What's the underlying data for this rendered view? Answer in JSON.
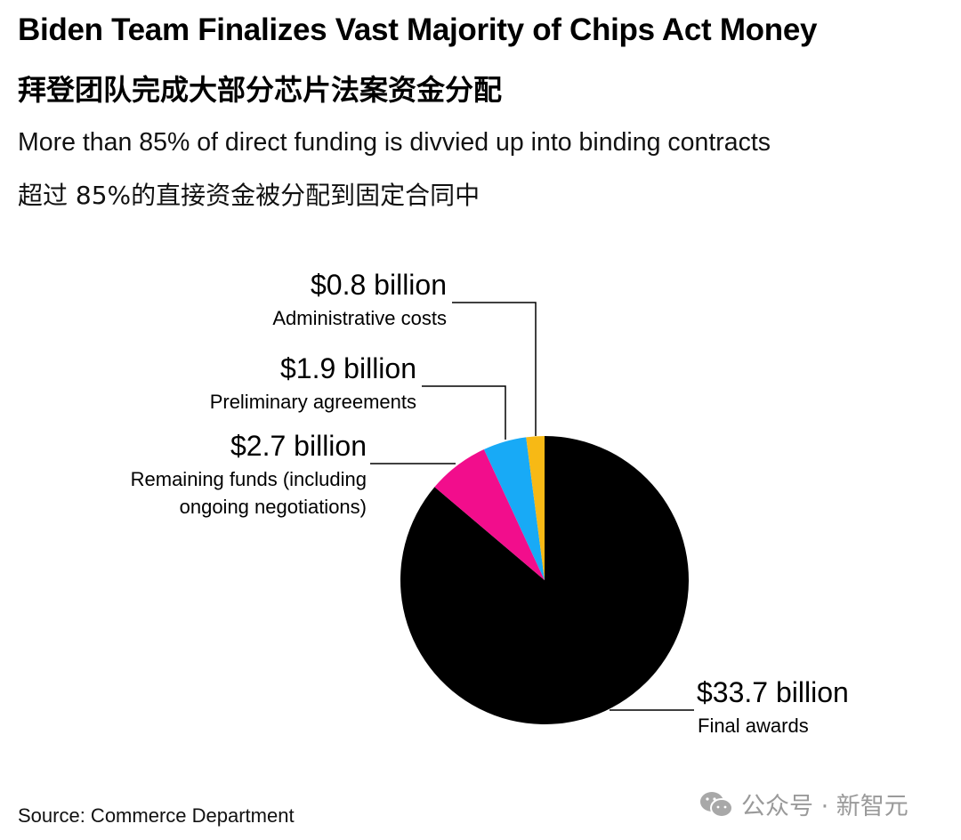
{
  "chart_data": {
    "type": "pie",
    "title": "Biden Team Finalizes Vast Majority of Chips Act Money",
    "title_cn": "拜登团队完成大部分芯片法案资金分配",
    "subtitle": "More than 85% of direct funding is divvied up into binding contracts",
    "subtitle_cn": "超过 85%的直接资金被分配到固定合同中",
    "unit": "billion USD",
    "slices": [
      {
        "name": "Final awards",
        "value": 33.7,
        "label": "$33.7 billion",
        "color": "#000000"
      },
      {
        "name": "Remaining funds (including ongoing negotiations)",
        "line1": "Remaining funds (including",
        "line2": "ongoing negotiations)",
        "value": 2.7,
        "label": "$2.7 billion",
        "color": "#f20d8c"
      },
      {
        "name": "Preliminary agreements",
        "value": 1.9,
        "label": "$1.9 billion",
        "color": "#18aaf6"
      },
      {
        "name": "Administrative costs",
        "value": 0.8,
        "label": "$0.8 billion",
        "color": "#f7b915"
      }
    ],
    "source": "Source: Commerce Department"
  },
  "watermark": {
    "text": "公众号 · 新智元",
    "icon": "wechat-icon"
  }
}
